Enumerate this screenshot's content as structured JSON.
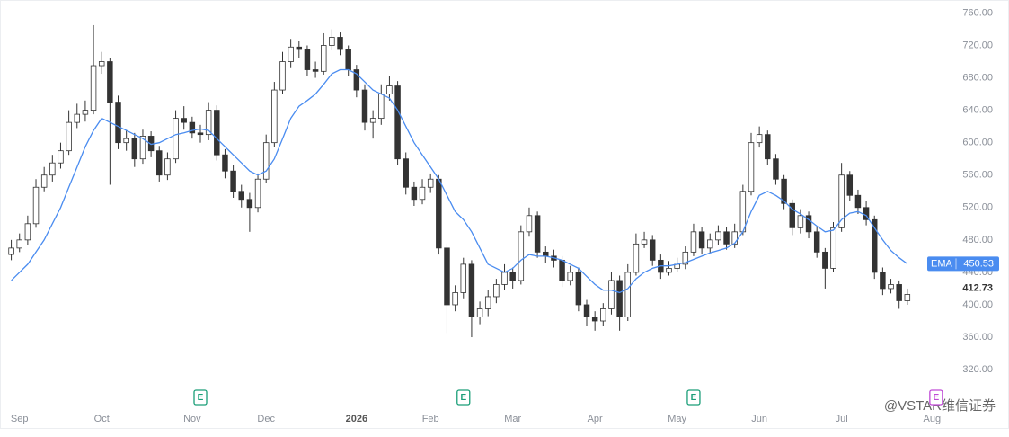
{
  "chart_data": {
    "type": "candlestick",
    "open": [
      462,
      470,
      480,
      500,
      545,
      560,
      575,
      590,
      625,
      635,
      640,
      695,
      700,
      650,
      600,
      605,
      580,
      608,
      590,
      560,
      580,
      630,
      625,
      612,
      610,
      640,
      585,
      565,
      540,
      530,
      520,
      555,
      600,
      665,
      700,
      718,
      715,
      690,
      688,
      720,
      730,
      715,
      690,
      665,
      625,
      630,
      660,
      670,
      580,
      545,
      530,
      545,
      555,
      470,
      400,
      415,
      450,
      385,
      395,
      410,
      425,
      440,
      430,
      490,
      510,
      465,
      460,
      455,
      430,
      440,
      400,
      385,
      380,
      395,
      430,
      385,
      440,
      475,
      480,
      455,
      440,
      445,
      450,
      465,
      490,
      470,
      480,
      490,
      475,
      490,
      540,
      600,
      610,
      580,
      555,
      525,
      495,
      510,
      490,
      465,
      445,
      495,
      560,
      535,
      520,
      505,
      440,
      420,
      425,
      405
    ],
    "high": [
      480,
      488,
      510,
      555,
      570,
      585,
      600,
      640,
      648,
      652,
      745,
      712,
      705,
      658,
      615,
      612,
      616,
      614,
      596,
      588,
      640,
      645,
      632,
      622,
      650,
      646,
      592,
      572,
      548,
      538,
      562,
      610,
      675,
      712,
      728,
      725,
      720,
      700,
      735,
      740,
      736,
      720,
      696,
      672,
      640,
      672,
      682,
      676,
      588,
      552,
      555,
      562,
      560,
      476,
      424,
      458,
      455,
      404,
      418,
      432,
      450,
      446,
      498,
      520,
      515,
      472,
      468,
      460,
      448,
      446,
      406,
      392,
      402,
      440,
      436,
      450,
      488,
      490,
      486,
      462,
      454,
      458,
      472,
      500,
      496,
      488,
      498,
      496,
      500,
      548,
      612,
      620,
      615,
      586,
      560,
      530,
      518,
      515,
      496,
      470,
      502,
      575,
      565,
      542,
      528,
      510,
      446,
      432,
      430,
      420
    ],
    "low": [
      455,
      465,
      474,
      495,
      540,
      552,
      568,
      585,
      618,
      626,
      635,
      685,
      548,
      592,
      590,
      570,
      574,
      582,
      552,
      554,
      575,
      616,
      605,
      600,
      603,
      578,
      556,
      532,
      520,
      490,
      514,
      550,
      595,
      660,
      692,
      705,
      682,
      680,
      684,
      714,
      708,
      682,
      656,
      615,
      605,
      622,
      652,
      572,
      536,
      522,
      524,
      538,
      462,
      365,
      392,
      408,
      360,
      376,
      386,
      402,
      418,
      420,
      425,
      484,
      458,
      452,
      446,
      422,
      424,
      392,
      374,
      368,
      374,
      388,
      368,
      380,
      436,
      470,
      448,
      432,
      436,
      440,
      444,
      460,
      462,
      464,
      474,
      468,
      470,
      486,
      535,
      594,
      572,
      548,
      518,
      486,
      488,
      482,
      458,
      420,
      440,
      490,
      528,
      512,
      498,
      432,
      412,
      414,
      395,
      400
    ],
    "close": [
      470,
      480,
      500,
      545,
      560,
      575,
      590,
      625,
      635,
      640,
      695,
      700,
      650,
      600,
      605,
      580,
      608,
      590,
      560,
      580,
      630,
      625,
      612,
      610,
      640,
      585,
      565,
      540,
      530,
      520,
      555,
      600,
      665,
      700,
      718,
      715,
      690,
      688,
      720,
      730,
      715,
      690,
      665,
      625,
      630,
      660,
      670,
      580,
      545,
      530,
      545,
      555,
      470,
      400,
      415,
      450,
      385,
      395,
      410,
      425,
      440,
      430,
      490,
      510,
      465,
      460,
      455,
      430,
      440,
      400,
      385,
      380,
      395,
      430,
      385,
      440,
      475,
      480,
      455,
      440,
      445,
      450,
      465,
      490,
      470,
      480,
      490,
      475,
      490,
      540,
      600,
      610,
      580,
      555,
      525,
      495,
      510,
      490,
      465,
      445,
      495,
      560,
      535,
      520,
      505,
      440,
      420,
      425,
      405,
      412.73
    ],
    "ema": {
      "label": "EMA",
      "color": "#4a8cf0",
      "values": [
        430,
        440,
        450,
        465,
        480,
        500,
        520,
        545,
        570,
        595,
        615,
        630,
        625,
        620,
        615,
        610,
        605,
        598,
        600,
        605,
        610,
        612,
        615,
        617,
        615,
        605,
        595,
        585,
        575,
        565,
        560,
        565,
        580,
        605,
        630,
        645,
        652,
        660,
        672,
        685,
        690,
        690,
        685,
        675,
        665,
        660,
        655,
        640,
        620,
        600,
        585,
        570,
        555,
        535,
        515,
        505,
        490,
        470,
        450,
        445,
        440,
        445,
        455,
        462,
        460,
        460,
        458,
        455,
        450,
        445,
        435,
        425,
        418,
        418,
        415,
        420,
        432,
        440,
        445,
        448,
        448,
        450,
        452,
        456,
        460,
        464,
        467,
        470,
        476,
        490,
        515,
        535,
        540,
        535,
        528,
        518,
        512,
        505,
        497,
        490,
        492,
        505,
        513,
        515,
        510,
        495,
        480,
        467,
        458,
        450.53
      ]
    },
    "up_color": "#ffffff",
    "down_color": "#333333",
    "wick_color": "#333333",
    "xlim": [
      -0.5,
      113.5
    ],
    "xticks": [
      {
        "value": 1,
        "label": "Sep"
      },
      {
        "value": 11,
        "label": "Oct"
      },
      {
        "value": 22,
        "label": "Nov"
      },
      {
        "value": 31,
        "label": "Dec"
      },
      {
        "value": 42,
        "label": "2026",
        "bold": true
      },
      {
        "value": 51,
        "label": "Feb"
      },
      {
        "value": 61,
        "label": "Mar"
      },
      {
        "value": 71,
        "label": "Apr"
      },
      {
        "value": 81,
        "label": "May"
      },
      {
        "value": 91,
        "label": "Jun"
      },
      {
        "value": 101,
        "label": "Jul"
      },
      {
        "value": 112,
        "label": "Aug"
      }
    ],
    "ylim": [
      248,
      776
    ],
    "yticks": [
      {
        "value": 760,
        "label": "760.00"
      },
      {
        "value": 720,
        "label": "720.00"
      },
      {
        "value": 680,
        "label": "680.00"
      },
      {
        "value": 640,
        "label": "640.00"
      },
      {
        "value": 600,
        "label": "600.00"
      },
      {
        "value": 560,
        "label": "560.00"
      },
      {
        "value": 520,
        "label": "520.00"
      },
      {
        "value": 480,
        "label": "480.00"
      },
      {
        "value": 440,
        "label": "440.00"
      },
      {
        "value": 400,
        "label": "400.00"
      },
      {
        "value": 360,
        "label": "360.00"
      },
      {
        "value": 320,
        "label": "320.00"
      }
    ],
    "events": [
      {
        "x": 23,
        "label": "E",
        "color": "#1a9e78"
      },
      {
        "x": 55,
        "label": "E",
        "color": "#1a9e78"
      },
      {
        "x": 83,
        "label": "E",
        "color": "#1a9e78"
      },
      {
        "x": 112.5,
        "label": "E",
        "color": "#c04ad6"
      }
    ],
    "watermark": "@VSTAR维信证券"
  }
}
